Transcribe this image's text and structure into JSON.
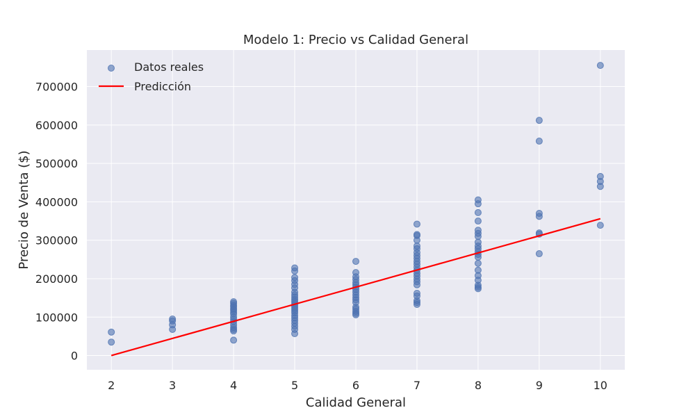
{
  "chart_data": {
    "type": "scatter",
    "title": "Modelo 1: Precio vs Calidad General",
    "xlabel": "Calidad General",
    "ylabel": "Precio de Venta ($)",
    "xlim": [
      1.6,
      10.4
    ],
    "ylim": [
      -37000,
      795000
    ],
    "xticks": [
      2,
      3,
      4,
      5,
      6,
      7,
      8,
      9,
      10
    ],
    "yticks": [
      0,
      100000,
      200000,
      300000,
      400000,
      500000,
      600000,
      700000
    ],
    "grid": true,
    "legend_position": "top-left",
    "colors": {
      "points": "#4c72b0",
      "line": "#ff0000",
      "plot_bg": "#eaeaf2",
      "grid": "#ffffff"
    },
    "series": [
      {
        "name": "Datos reales",
        "kind": "scatter",
        "points": [
          [
            2,
            61000
          ],
          [
            2,
            35000
          ],
          [
            3,
            95000
          ],
          [
            3,
            90000
          ],
          [
            3,
            80000
          ],
          [
            3,
            68000
          ],
          [
            4,
            140000
          ],
          [
            4,
            136000
          ],
          [
            4,
            131000
          ],
          [
            4,
            127000
          ],
          [
            4,
            122000
          ],
          [
            4,
            118000
          ],
          [
            4,
            113000
          ],
          [
            4,
            108000
          ],
          [
            4,
            100000
          ],
          [
            4,
            94000
          ],
          [
            4,
            88000
          ],
          [
            4,
            80000
          ],
          [
            4,
            73000
          ],
          [
            4,
            68000
          ],
          [
            4,
            64000
          ],
          [
            4,
            40000
          ],
          [
            5,
            228000
          ],
          [
            5,
            220000
          ],
          [
            5,
            203000
          ],
          [
            5,
            195000
          ],
          [
            5,
            185000
          ],
          [
            5,
            176000
          ],
          [
            5,
            165000
          ],
          [
            5,
            158000
          ],
          [
            5,
            152000
          ],
          [
            5,
            146000
          ],
          [
            5,
            141000
          ],
          [
            5,
            136000
          ],
          [
            5,
            131000
          ],
          [
            5,
            126000
          ],
          [
            5,
            121000
          ],
          [
            5,
            116000
          ],
          [
            5,
            111000
          ],
          [
            5,
            104000
          ],
          [
            5,
            98000
          ],
          [
            5,
            91000
          ],
          [
            5,
            84000
          ],
          [
            5,
            76000
          ],
          [
            5,
            68000
          ],
          [
            5,
            57000
          ],
          [
            6,
            245000
          ],
          [
            6,
            216000
          ],
          [
            6,
            205000
          ],
          [
            6,
            198000
          ],
          [
            6,
            190000
          ],
          [
            6,
            184000
          ],
          [
            6,
            178000
          ],
          [
            6,
            172000
          ],
          [
            6,
            165000
          ],
          [
            6,
            158000
          ],
          [
            6,
            151000
          ],
          [
            6,
            145000
          ],
          [
            6,
            138000
          ],
          [
            6,
            126000
          ],
          [
            6,
            121000
          ],
          [
            6,
            115000
          ],
          [
            6,
            110000
          ],
          [
            6,
            106000
          ],
          [
            7,
            342000
          ],
          [
            7,
            315000
          ],
          [
            7,
            312000
          ],
          [
            7,
            300000
          ],
          [
            7,
            285000
          ],
          [
            7,
            278000
          ],
          [
            7,
            268000
          ],
          [
            7,
            260000
          ],
          [
            7,
            253000
          ],
          [
            7,
            245000
          ],
          [
            7,
            238000
          ],
          [
            7,
            230000
          ],
          [
            7,
            222000
          ],
          [
            7,
            214000
          ],
          [
            7,
            207000
          ],
          [
            7,
            199000
          ],
          [
            7,
            192000
          ],
          [
            7,
            184000
          ],
          [
            7,
            162000
          ],
          [
            7,
            155000
          ],
          [
            7,
            143000
          ],
          [
            7,
            138000
          ],
          [
            7,
            133000
          ],
          [
            8,
            405000
          ],
          [
            8,
            395000
          ],
          [
            8,
            372000
          ],
          [
            8,
            350000
          ],
          [
            8,
            326000
          ],
          [
            8,
            318000
          ],
          [
            8,
            310000
          ],
          [
            8,
            295000
          ],
          [
            8,
            285000
          ],
          [
            8,
            278000
          ],
          [
            8,
            270000
          ],
          [
            8,
            263000
          ],
          [
            8,
            256000
          ],
          [
            8,
            240000
          ],
          [
            8,
            222000
          ],
          [
            8,
            208000
          ],
          [
            8,
            196000
          ],
          [
            8,
            183000
          ],
          [
            8,
            178000
          ],
          [
            8,
            174000
          ],
          [
            9,
            612000
          ],
          [
            9,
            558000
          ],
          [
            9,
            370000
          ],
          [
            9,
            362000
          ],
          [
            9,
            319000
          ],
          [
            9,
            316000
          ],
          [
            9,
            265000
          ],
          [
            10,
            755000
          ],
          [
            10,
            466000
          ],
          [
            10,
            453000
          ],
          [
            10,
            440000
          ],
          [
            10,
            339000
          ]
        ]
      },
      {
        "name": "Predicción",
        "kind": "line",
        "points": [
          [
            2,
            0
          ],
          [
            10,
            356000
          ]
        ]
      }
    ]
  }
}
